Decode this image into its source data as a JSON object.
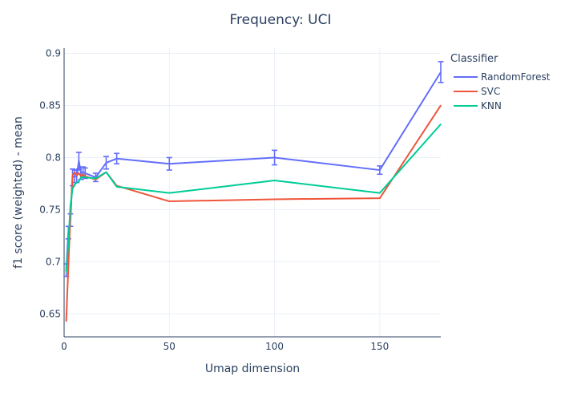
{
  "chart_data": {
    "type": "line",
    "title": "Frequency: UCI",
    "xlabel": "Umap dimension",
    "ylabel": "f1 score (weighted) - mean",
    "xlim": [
      0,
      179
    ],
    "ylim": [
      0.628,
      0.905
    ],
    "xticks": [
      0,
      50,
      100,
      150
    ],
    "yticks": [
      0.65,
      0.7,
      0.75,
      0.8,
      0.85,
      0.9
    ],
    "xtick_labels": [
      "0",
      "50",
      "100",
      "150"
    ],
    "ytick_labels": [
      "0.65",
      "0.7",
      "0.75",
      "0.8",
      "0.85",
      "0.9"
    ],
    "grid": true,
    "legend": {
      "title": "Classifier",
      "position": "top-right"
    },
    "series": [
      {
        "name": "RandomForest",
        "color": "#636efa",
        "x": [
          1,
          2,
          3,
          4,
          5,
          6,
          7,
          8,
          9,
          10,
          15,
          20,
          25,
          50,
          100,
          150,
          179
        ],
        "y": [
          0.692,
          0.728,
          0.74,
          0.781,
          0.782,
          0.782,
          0.797,
          0.785,
          0.786,
          0.785,
          0.781,
          0.795,
          0.799,
          0.794,
          0.8,
          0.788,
          0.882
        ],
        "error": [
          0.006,
          0.006,
          0.006,
          0.008,
          0.006,
          0.006,
          0.008,
          0.006,
          0.005,
          0.005,
          0.004,
          0.006,
          0.005,
          0.006,
          0.007,
          0.004,
          0.01
        ]
      },
      {
        "name": "SVC",
        "color": "#ef553b",
        "x": [
          1,
          2,
          3,
          4,
          5,
          6,
          7,
          8,
          9,
          10,
          15,
          20,
          25,
          50,
          100,
          150,
          179
        ],
        "y": [
          0.643,
          0.695,
          0.744,
          0.783,
          0.786,
          0.783,
          0.785,
          0.782,
          0.784,
          0.782,
          0.779,
          0.786,
          0.773,
          0.758,
          0.76,
          0.761,
          0.85
        ],
        "error": []
      },
      {
        "name": "KNN",
        "color": "#00cc96",
        "x": [
          1,
          2,
          3,
          4,
          5,
          6,
          7,
          8,
          9,
          10,
          15,
          20,
          25,
          50,
          100,
          150,
          179
        ],
        "y": [
          0.69,
          0.718,
          0.754,
          0.77,
          0.774,
          0.776,
          0.777,
          0.781,
          0.781,
          0.781,
          0.78,
          0.786,
          0.772,
          0.766,
          0.778,
          0.766,
          0.832
        ],
        "error": []
      }
    ]
  }
}
